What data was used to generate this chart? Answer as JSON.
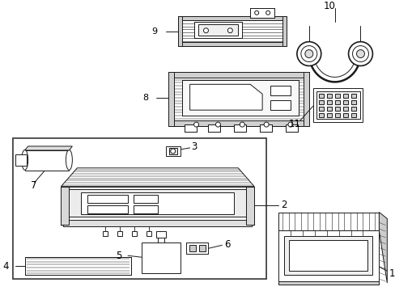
{
  "bg_color": "#ffffff",
  "line_color": "#1a1a1a",
  "label_color": "#000000",
  "lw": 0.7,
  "fig_w": 4.89,
  "fig_h": 3.6,
  "dpi": 100
}
